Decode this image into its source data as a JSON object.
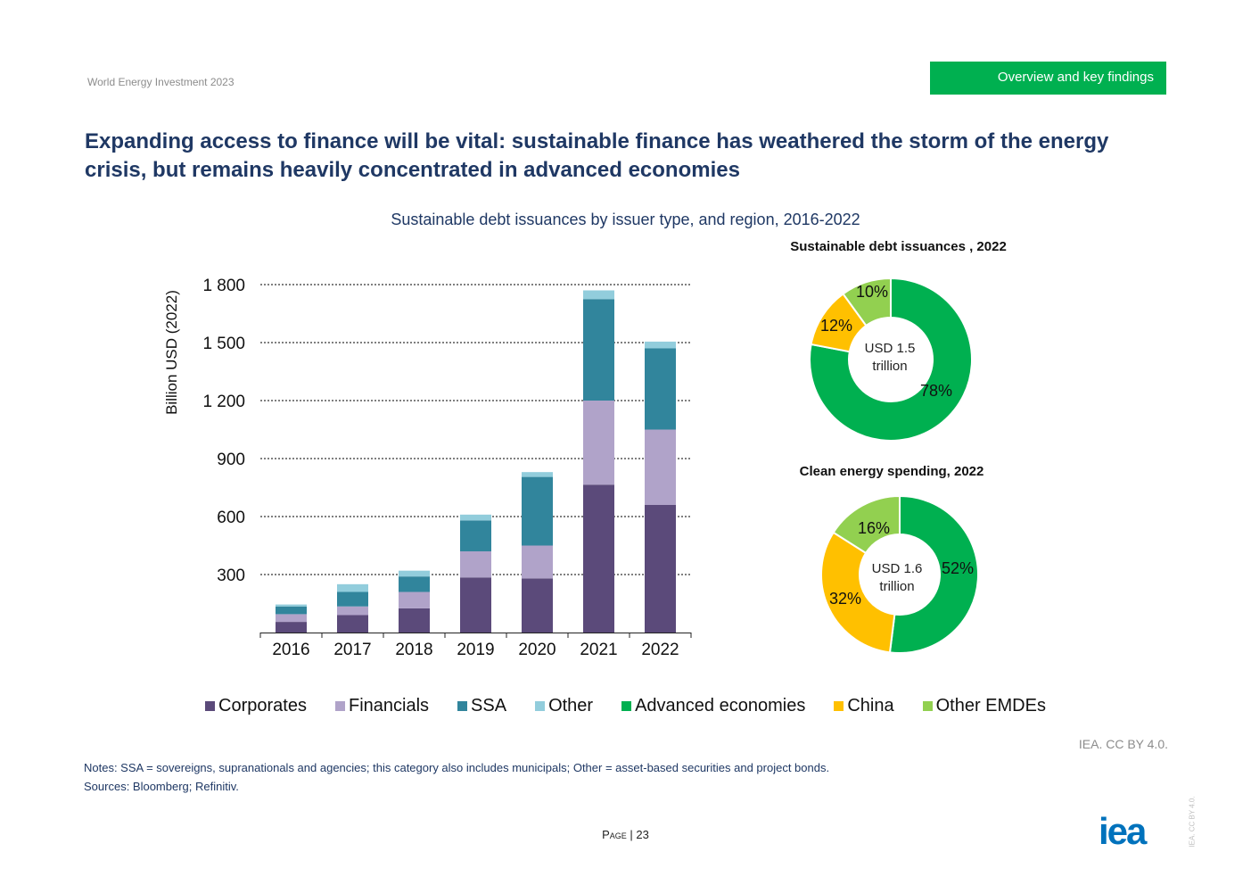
{
  "header": {
    "publication": "World Energy Investment 2023",
    "section": "Overview and key findings"
  },
  "title": "Expanding access to finance will be vital: sustainable finance has weathered the storm of the energy crisis, but remains heavily concentrated in advanced economies",
  "colors": {
    "corporates": "#5b4a7a",
    "financials": "#b0a3c9",
    "ssa": "#31859c",
    "other": "#92cddc",
    "advanced": "#00b050",
    "china": "#ffc000",
    "other_emdes": "#92d050",
    "accent": "#00b050",
    "title": "#1f3864"
  },
  "chart_data": [
    {
      "type": "bar",
      "stacked": true,
      "title": "Sustainable debt issuances by issuer type, and region, 2016-2022",
      "xlabel": "",
      "ylabel": "Billion USD (2022)",
      "ylim": [
        0,
        1800
      ],
      "yticks": [
        300,
        600,
        900,
        1200,
        1500,
        1800
      ],
      "ytick_labels": [
        "300",
        "600",
        "900",
        "1 200",
        "1 500",
        "1 800"
      ],
      "grid": true,
      "categories": [
        "2016",
        "2017",
        "2018",
        "2019",
        "2020",
        "2021",
        "2022"
      ],
      "series": [
        {
          "name": "Corporates",
          "values": [
            55,
            90,
            125,
            285,
            280,
            765,
            660
          ]
        },
        {
          "name": "Financials",
          "values": [
            40,
            45,
            85,
            135,
            170,
            435,
            390
          ]
        },
        {
          "name": "SSA",
          "values": [
            40,
            75,
            80,
            160,
            355,
            525,
            420
          ]
        },
        {
          "name": "Other",
          "values": [
            10,
            40,
            30,
            30,
            25,
            45,
            35
          ]
        }
      ]
    },
    {
      "type": "pie",
      "donut": true,
      "title": "Sustainable debt issuances , 2022",
      "center_label": [
        "USD 1.5",
        "trillion"
      ],
      "labels": [
        "Advanced economies",
        "China",
        "Other EMDEs"
      ],
      "values": [
        78,
        12,
        10
      ],
      "value_labels": [
        "78%",
        "12%",
        "10%"
      ]
    },
    {
      "type": "pie",
      "donut": true,
      "title": "Clean energy spending, 2022",
      "center_label": [
        "USD 1.6",
        "trillion"
      ],
      "labels": [
        "Advanced economies",
        "China",
        "Other EMDEs"
      ],
      "values": [
        52,
        32,
        16
      ],
      "value_labels": [
        "52%",
        "32%",
        "16%"
      ]
    }
  ],
  "legend": [
    "Corporates",
    "Financials",
    "SSA",
    "Other",
    "Advanced economies",
    "China",
    "Other EMDEs"
  ],
  "credit": "IEA. CC BY 4.0.",
  "notes": "Notes: SSA = sovereigns, supranationals and agencies; this category also includes municipals; Other = asset-based securities and project bonds.",
  "sources": "Sources: Bloomberg; Refinitiv.",
  "page": {
    "label": "Page",
    "number": "23"
  },
  "logo_text": "iea",
  "vertical_credit": "IEA. CC BY 4.0."
}
